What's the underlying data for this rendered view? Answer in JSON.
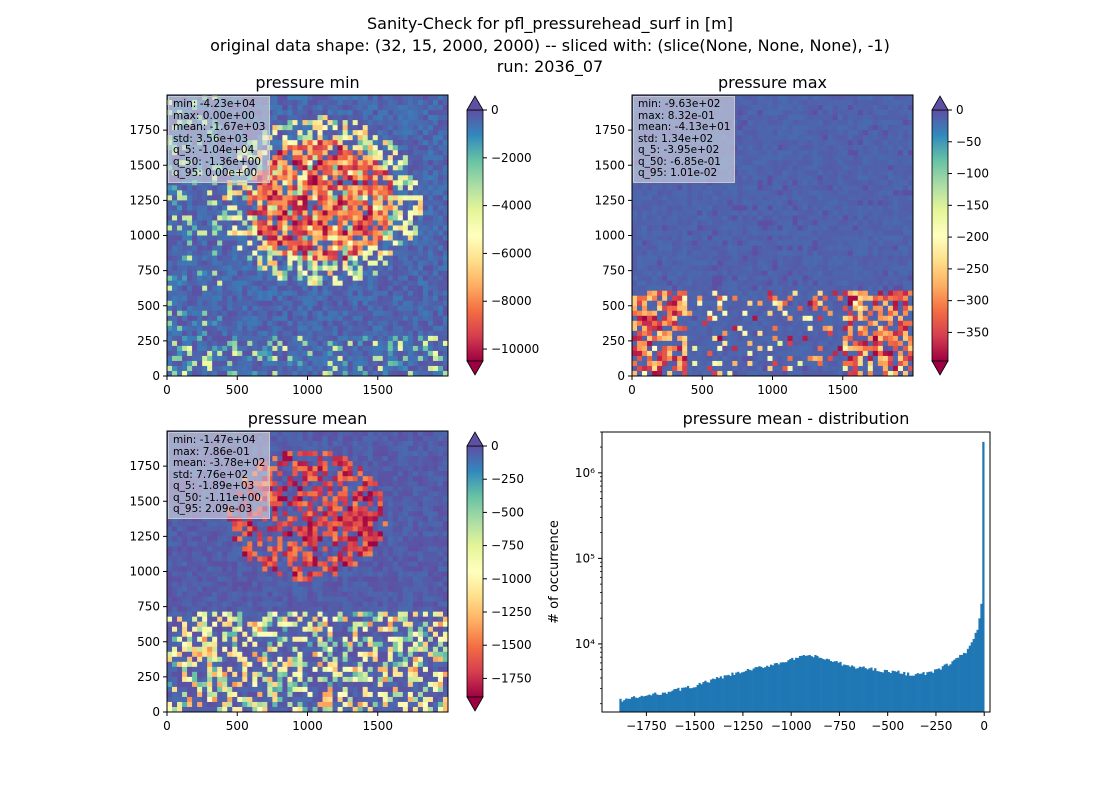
{
  "header": {
    "title_line1": "Sanity-Check for pfl_pressurehead_surf in [m]",
    "title_line2": "original data shape: (32, 15, 2000, 2000) -- sliced with: (slice(None, None, None), -1)",
    "title_line3": "run: 2036_07"
  },
  "colors": {
    "spectral": [
      "#9e0142",
      "#d53e4f",
      "#f46d43",
      "#fdae61",
      "#fee08b",
      "#ffffbf",
      "#e6f598",
      "#abdda4",
      "#66c2a5",
      "#3288bd",
      "#5e4fa2"
    ],
    "hist_bar": "#1f77b4"
  },
  "chart_data": [
    {
      "type": "heatmap",
      "title": "pressure min",
      "colormap": "Spectral",
      "x_ticks": [
        "0",
        "500",
        "1000",
        "1500"
      ],
      "y_ticks": [
        "0",
        "250",
        "500",
        "750",
        "1000",
        "1250",
        "1500",
        "1750"
      ],
      "xlim": [
        0,
        2000
      ],
      "ylim": [
        0,
        2000
      ],
      "vlim": [
        -10500,
        0
      ],
      "colorbar_ticks": [
        "0",
        "−2000",
        "−4000",
        "−6000",
        "−8000",
        "−10000"
      ],
      "colorbar_values": [
        0,
        -2000,
        -4000,
        -6000,
        -8000,
        -10000
      ],
      "colorbar_extend": "both",
      "stats": {
        "min": "-4.23e+04",
        "max": "0.00e+00",
        "mean": "-1.67e+03",
        "std": "3.56e+03",
        "q_5": "-1.04e+04",
        "q_50": "-1.36e+00",
        "q_95": "0.00e+00"
      }
    },
    {
      "type": "heatmap",
      "title": "pressure max",
      "colormap": "Spectral",
      "x_ticks": [
        "0",
        "500",
        "1000",
        "1500"
      ],
      "y_ticks": [
        "0",
        "250",
        "500",
        "750",
        "1000",
        "1250",
        "1500",
        "1750"
      ],
      "xlim": [
        0,
        2000
      ],
      "ylim": [
        0,
        2000
      ],
      "vlim": [
        -395,
        0
      ],
      "colorbar_ticks": [
        "0",
        "−50",
        "−100",
        "−150",
        "−200",
        "−250",
        "−300",
        "−350"
      ],
      "colorbar_values": [
        0,
        -50,
        -100,
        -150,
        -200,
        -250,
        -300,
        -350
      ],
      "colorbar_extend": "both",
      "stats": {
        "min": "-9.63e+02",
        "max": "8.32e-01",
        "mean": "-4.13e+01",
        "std": "1.34e+02",
        "q_5": "-3.95e+02",
        "q_50": "-6.85e-01",
        "q_95": "1.01e-02"
      }
    },
    {
      "type": "heatmap",
      "title": "pressure mean",
      "colormap": "Spectral",
      "x_ticks": [
        "0",
        "500",
        "1000",
        "1500"
      ],
      "y_ticks": [
        "0",
        "250",
        "500",
        "750",
        "1000",
        "1250",
        "1500",
        "1750"
      ],
      "xlim": [
        0,
        2000
      ],
      "ylim": [
        0,
        2000
      ],
      "vlim": [
        -1890,
        0
      ],
      "colorbar_ticks": [
        "0",
        "−250",
        "−500",
        "−750",
        "−1000",
        "−1250",
        "−1500",
        "−1750"
      ],
      "colorbar_values": [
        0,
        -250,
        -500,
        -750,
        -1000,
        -1250,
        -1500,
        -1750
      ],
      "colorbar_extend": "both",
      "stats": {
        "min": "-1.47e+04",
        "max": "7.86e-01",
        "mean": "-3.78e+02",
        "std": "7.76e+02",
        "q_5": "-1.89e+03",
        "q_50": "-1.11e+00",
        "q_95": "2.09e-03"
      }
    },
    {
      "type": "bar",
      "title": "pressure mean - distribution",
      "xlabel": "",
      "ylabel": "# of occurrence",
      "y_scale": "log",
      "xlim": [
        -1980,
        30
      ],
      "ylim": [
        1600,
        3000000
      ],
      "x_ticks": [
        "−1750",
        "−1500",
        "−1250",
        "−1000",
        "−750",
        "−500",
        "−250",
        "0"
      ],
      "x_tick_values": [
        -1750,
        -1500,
        -1250,
        -1000,
        -750,
        -500,
        -250,
        0
      ],
      "y_ticks": [
        "10⁴",
        "10⁵",
        "10⁶"
      ],
      "y_tick_values": [
        10000,
        100000,
        1000000
      ],
      "bin_width": 10,
      "bins": {
        "centers": [
          -1885,
          -1695,
          -1505,
          -1405,
          -1305,
          -1205,
          -1105,
          -1005,
          -955,
          -905,
          -865,
          -805,
          -705,
          -605,
          -505,
          -455,
          -405,
          -355,
          -305,
          -255,
          -205,
          -165,
          -125,
          -85,
          -55,
          -35,
          -25,
          -15,
          -5
        ],
        "counts": [
          2200,
          2600,
          3200,
          3800,
          4400,
          5000,
          5700,
          6500,
          6900,
          7400,
          7000,
          6500,
          5500,
          5200,
          4800,
          4700,
          4500,
          4400,
          4500,
          4800,
          5500,
          6200,
          7200,
          8500,
          11000,
          15000,
          20000,
          30000,
          2300000
        ]
      }
    }
  ]
}
